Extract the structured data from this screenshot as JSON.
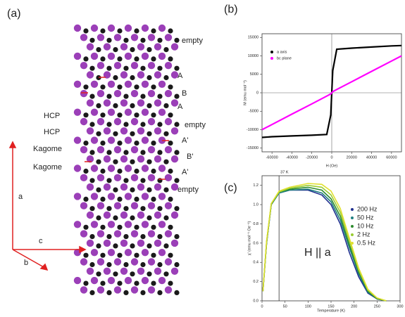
{
  "panel_a": {
    "label": "(a)",
    "left_labels": [
      "HCP",
      "HCP",
      "Kagome",
      "Kagome"
    ],
    "right_labels": [
      "empty",
      "A",
      "B",
      "A",
      "empty",
      "A'",
      "B'",
      "A'",
      "empty"
    ],
    "axes": [
      "a",
      "c",
      "b"
    ]
  },
  "chart_data": [
    {
      "type": "line",
      "label": "(b)",
      "xlabel": "H (Oe)",
      "ylabel": "M (emu mol⁻¹)",
      "x": [
        -70000,
        -60000,
        -40000,
        -20000,
        -5000,
        -1000,
        1000,
        5000,
        20000,
        40000,
        60000,
        70000
      ],
      "series": [
        {
          "name": "a axis",
          "color": "#000000",
          "values": [
            -12100,
            -11900,
            -11700,
            -11500,
            -11300,
            -6000,
            6000,
            11800,
            12100,
            12400,
            12700,
            12800
          ]
        },
        {
          "name": "bc plane",
          "color": "#ff00ff",
          "values": [
            -10000,
            -8600,
            -5800,
            -3000,
            -900,
            -300,
            300,
            900,
            3000,
            5800,
            8600,
            10000
          ]
        }
      ],
      "xlim": [
        -70000,
        70000
      ],
      "xticks": [
        -60000,
        -40000,
        -20000,
        0,
        20000,
        40000,
        60000
      ],
      "ylim": [
        -16000,
        16000
      ],
      "yticks": [
        -15000,
        -10000,
        -5000,
        0,
        5000,
        10000,
        15000
      ],
      "legend": "upper left"
    },
    {
      "type": "line",
      "label": "(c)",
      "xlabel": "Temperature (K)",
      "ylabel": "χ' (emu mol⁻¹ Oe⁻¹)",
      "annotation": "H || a",
      "vline": 37,
      "vline_label": "37 K",
      "x": [
        2,
        10,
        20,
        37,
        60,
        100,
        130,
        150,
        170,
        190,
        210,
        230,
        250,
        270
      ],
      "series": [
        {
          "name": "200 Hz",
          "color": "#1f2f8f",
          "values": [
            0.1,
            0.6,
            1.0,
            1.12,
            1.15,
            1.15,
            1.1,
            1.0,
            0.8,
            0.5,
            0.25,
            0.08,
            0.02,
            0.0
          ]
        },
        {
          "name": "50 Hz",
          "color": "#1f7f7f",
          "values": [
            0.1,
            0.6,
            1.0,
            1.12,
            1.15,
            1.16,
            1.12,
            1.03,
            0.84,
            0.55,
            0.28,
            0.09,
            0.02,
            0.0
          ]
        },
        {
          "name": "10 Hz",
          "color": "#2e8b2e",
          "values": [
            0.1,
            0.61,
            1.0,
            1.13,
            1.16,
            1.18,
            1.15,
            1.06,
            0.88,
            0.58,
            0.3,
            0.1,
            0.02,
            0.0
          ]
        },
        {
          "name": "2 Hz",
          "color": "#9acd32",
          "values": [
            0.1,
            0.62,
            1.01,
            1.13,
            1.17,
            1.2,
            1.18,
            1.1,
            0.92,
            0.62,
            0.32,
            0.11,
            0.03,
            0.0
          ]
        },
        {
          "name": "0.5 Hz",
          "color": "#e0e030",
          "values": [
            0.1,
            0.62,
            1.01,
            1.14,
            1.18,
            1.22,
            1.21,
            1.14,
            0.96,
            0.65,
            0.34,
            0.12,
            0.03,
            0.0
          ]
        }
      ],
      "xlim": [
        0,
        300
      ],
      "xticks": [
        0,
        50,
        100,
        150,
        200,
        250,
        300
      ],
      "ylim": [
        0,
        1.3
      ],
      "yticks": [
        {
          "value": 0,
          "label": "0.0"
        },
        {
          "value": 0.2,
          "label": "0.2"
        },
        {
          "value": 0.4,
          "label": "0.4"
        },
        {
          "value": 0.6,
          "label": "0.6"
        },
        {
          "value": 0.8,
          "label": "0.8"
        },
        {
          "value": 1,
          "label": "1.0"
        },
        {
          "value": 1.2,
          "label": "1.2"
        }
      ],
      "legend": "right"
    }
  ]
}
